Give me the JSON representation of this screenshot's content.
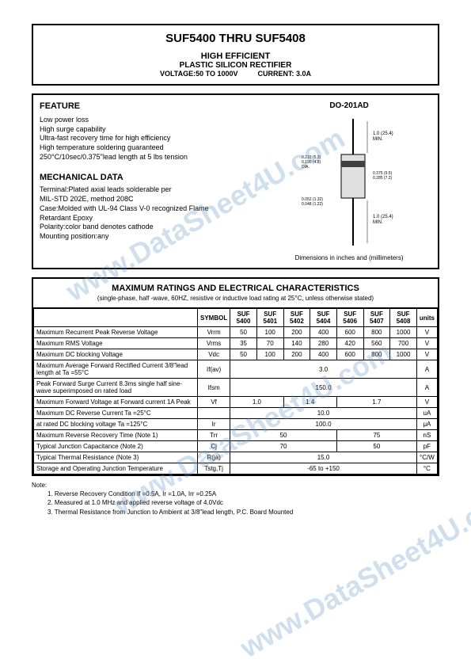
{
  "header": {
    "title": "SUF5400  THRU  SUF5408",
    "subtitle1": "HIGH  EFFICIENT",
    "subtitle2": "PLASTIC  SILICON  RECTIFIER",
    "voltage": "VOLTAGE:50  TO  1000V",
    "current": "CURRENT:  3.0A"
  },
  "feature": {
    "title": "FEATURE",
    "lines": [
      "Low power loss",
      "High surge capability",
      "Ultra-fast recovery time for high efficiency",
      "High temperature soldering guaranteed",
      "250°C/10sec/0.375\"lead length at 5 lbs tension"
    ]
  },
  "mechanical": {
    "title": "MECHANICAL DATA",
    "lines": [
      "Terminal:Plated axial leads solderable per",
      "              MIL-STD 202E, method 208C",
      "Case:Molded with UL-94 Class V-0 recognized Flame",
      "           Retardant Epoxy",
      "Polarity:color band denotes cathode",
      "Mounting position:any"
    ]
  },
  "package": {
    "label": "DO-201AD",
    "dim_note": "Dimensions in inches and (millimeters)",
    "dims": {
      "lead_top": "1.0 (25.4) MIN.",
      "lead_dia": "0.210 (5.3) 0.190 (4.8) DIA.",
      "body_len": "0.375 (9.5) 0.285 (7.2)",
      "band": "0.052 (1.32) 0.048 (1.22)",
      "lead_bot": "1.0 (25.4) MIN."
    }
  },
  "ratings": {
    "title": "MAXIMUM  RATINGS  AND  ELECTRICAL  CHARACTERISTICS",
    "subtitle": "(single-phase, half -wave, 60HZ, resistive or inductive load rating at 25°C, unless otherwise stated)",
    "columns": [
      "SYMBOL",
      "SUF 5400",
      "SUF 5401",
      "SUF 5402",
      "SUF 5404",
      "SUF 5406",
      "SUF 5407",
      "SUF 5408",
      "units"
    ],
    "rows": [
      {
        "param": "Maximum Recurrent Peak Reverse Voltage",
        "symbol": "Vrrm",
        "vals": [
          "50",
          "100",
          "200",
          "400",
          "600",
          "800",
          "1000"
        ],
        "unit": "V"
      },
      {
        "param": "Maximum RMS Voltage",
        "symbol": "Vrms",
        "vals": [
          "35",
          "70",
          "140",
          "280",
          "420",
          "560",
          "700"
        ],
        "unit": "V"
      },
      {
        "param": "Maximum DC blocking Voltage",
        "symbol": "Vdc",
        "vals": [
          "50",
          "100",
          "200",
          "400",
          "600",
          "800",
          "1000"
        ],
        "unit": "V"
      },
      {
        "param": "Maximum Average Forward Rectified Current 3/8\"lead length at Ta =55°C",
        "symbol": "If(av)",
        "span": "3.0",
        "unit": "A"
      },
      {
        "param": "Peak Forward Surge Current 8.3ms single half sine-wave superimposed on rated load",
        "symbol": "Ifsm",
        "span": "150.0",
        "unit": "A"
      },
      {
        "param": "Maximum Forward Voltage at Forward current 1A Peak",
        "symbol": "Vf",
        "groups": [
          [
            "1.0",
            2
          ],
          [
            "1.4",
            2
          ],
          [
            "1.7",
            3
          ]
        ],
        "unit": "V"
      },
      {
        "param": "Maximum DC Reverse Current     Ta =25°C",
        "symbol": "",
        "span": "10.0",
        "unit": "uA",
        "noborder_bottom": true
      },
      {
        "param": "at rated DC blocking voltage      Ta =125°C",
        "symbol": "Ir",
        "span": "100.0",
        "unit": "μA"
      },
      {
        "param": "Maximum Reverse Recovery Time     (Note 1)",
        "symbol": "Trr",
        "groups": [
          [
            "50",
            4
          ],
          [
            "75",
            3
          ]
        ],
        "unit": "nS"
      },
      {
        "param": "Typical Junction Capacitance          (Note 2)",
        "symbol": "Cj",
        "groups": [
          [
            "70",
            4
          ],
          [
            "50",
            3
          ]
        ],
        "unit": "pF"
      },
      {
        "param": "Typical Thermal Resistance             (Note 3)",
        "symbol": "R(ja)",
        "span": "15.0",
        "unit": "°C/W"
      },
      {
        "param": "Storage and Operating Junction Temperature",
        "symbol": "Tstg,Tj",
        "span": "-65 to +150",
        "unit": "°C"
      }
    ]
  },
  "notes": {
    "title": "Note:",
    "lines": [
      "1. Reverse Recovery Condition If =0.5A, Ir =1.0A, Irr =0.25A",
      "2. Measured at 1.0 MHz and applied reverse voltage of 4.0Vdc",
      "3. Thermal Resistance from Junction to Ambient at 3/8\"lead length, P.C. Board Mounted"
    ]
  },
  "watermark": "www.DataSheet4U.com",
  "colors": {
    "border": "#000000",
    "text": "#000000",
    "diode_body": "#e0e0e0",
    "diode_band": "#404040",
    "watermark": "rgba(100,150,200,0.3)"
  }
}
